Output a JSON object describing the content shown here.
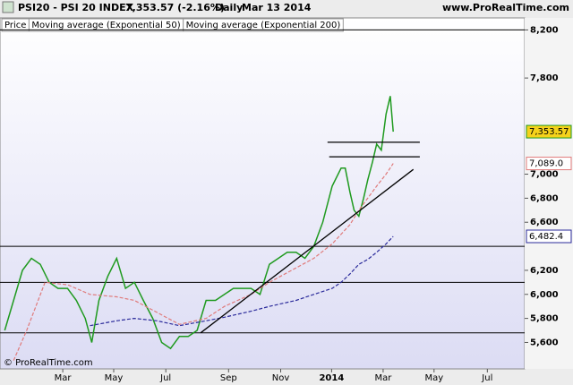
{
  "chart_data": {
    "type": "line",
    "title": "PSI20 - PSI 20 INDEX",
    "subtitle": "7,353.57 (-2.16%)",
    "period": "Daily",
    "date": "Mar 13 2014",
    "brand": "www.ProRealTime.com",
    "copyright": "© ProRealTime.com",
    "xlim": [
      0,
      88.6
    ],
    "ylim": [
      5380,
      8300
    ],
    "xticks": [
      {
        "value": 10.6,
        "label": "Mar"
      },
      {
        "value": 19.2,
        "label": "May"
      },
      {
        "value": 28,
        "label": "Jul"
      },
      {
        "value": 38.6,
        "label": "Sep"
      },
      {
        "value": 47.4,
        "label": "Nov"
      },
      {
        "value": 56,
        "label": "2014"
      },
      {
        "value": 64.7,
        "label": "Mar"
      },
      {
        "value": 73.3,
        "label": "May"
      },
      {
        "value": 82.3,
        "label": "Jul"
      }
    ],
    "yticks": [
      {
        "value": 8200,
        "label": "8,200"
      },
      {
        "value": 7800,
        "label": "7,800"
      },
      {
        "value": 7000,
        "label": "7,000"
      },
      {
        "value": 6800,
        "label": "6,800"
      },
      {
        "value": 6600,
        "label": "6,600"
      },
      {
        "value": 6200,
        "label": "6,200"
      },
      {
        "value": 6000,
        "label": "6,000"
      },
      {
        "value": 5800,
        "label": "5,800"
      },
      {
        "value": 5600,
        "label": "5,600"
      }
    ],
    "series": [
      {
        "name": "Price",
        "color": "#1f9a1f",
        "dash": false,
        "label_bg": "#f5d21b",
        "x": [
          0.8,
          2.3,
          3.8,
          5.3,
          6.8,
          8.3,
          9.8,
          11.4,
          12.9,
          14.4,
          15.5,
          16.7,
          18.2,
          19.7,
          21.2,
          22.7,
          24.2,
          25.8,
          27.3,
          28.8,
          30.3,
          31.8,
          33.3,
          34.8,
          36.4,
          37.9,
          39.4,
          40.9,
          42.4,
          43.9,
          45.5,
          47,
          48.5,
          50,
          51.5,
          53,
          54.5,
          56.1,
          57.6,
          58.3,
          59.1,
          59.8,
          60.6,
          61.4,
          62.1,
          62.9,
          63.6,
          64.4,
          65.2,
          65.9,
          66.4
        ],
        "values": [
          5700,
          5950,
          6200,
          6300,
          6250,
          6100,
          6050,
          6050,
          5950,
          5800,
          5600,
          5950,
          6150,
          6300,
          6050,
          6100,
          5950,
          5800,
          5600,
          5550,
          5650,
          5650,
          5700,
          5950,
          5950,
          6000,
          6050,
          6050,
          6050,
          6000,
          6250,
          6300,
          6350,
          6350,
          6300,
          6400,
          6600,
          6900,
          7050,
          7050,
          6850,
          6700,
          6650,
          6800,
          6950,
          7100,
          7250,
          7200,
          7500,
          7650,
          7353.57
        ],
        "last_label": "7,353.57"
      },
      {
        "name": "Moving average (Exponential 50)",
        "color": "#e07a7a",
        "dash": true,
        "label_bg": "#ffffff",
        "x": [
          2.3,
          4.5,
          7.6,
          11.4,
          15.2,
          19.7,
          22.7,
          26.5,
          30.3,
          34.8,
          37.9,
          42.4,
          45.5,
          50,
          53,
          56.1,
          57.6,
          59.1,
          60.6,
          62.1,
          63.6,
          65.2,
          66.4
        ],
        "values": [
          5450,
          5700,
          6100,
          6080,
          6000,
          5980,
          5950,
          5850,
          5750,
          5800,
          5900,
          6000,
          6100,
          6220,
          6300,
          6420,
          6500,
          6580,
          6700,
          6800,
          6900,
          7000,
          7089.0
        ],
        "last_label": "7,089.0"
      },
      {
        "name": "Moving average (Exponential 200)",
        "color": "#2a2a9a",
        "dash": true,
        "label_bg": "#ffffff",
        "x": [
          15.2,
          19.7,
          22.7,
          26.5,
          30.3,
          34.8,
          37.9,
          42.4,
          45.5,
          50,
          53,
          56.1,
          57.6,
          59.1,
          60.6,
          62.1,
          63.6,
          65.2,
          66.4
        ],
        "values": [
          5740,
          5780,
          5800,
          5780,
          5740,
          5780,
          5810,
          5860,
          5900,
          5950,
          6000,
          6050,
          6100,
          6170,
          6250,
          6290,
          6350,
          6420,
          6482.4
        ],
        "last_label": "6,482.4"
      }
    ],
    "hlines": [
      8200,
      6400,
      6100,
      5680
    ],
    "segments": [
      {
        "x": [
          33.9,
          69.8
        ],
        "values": [
          5680,
          7040
        ]
      },
      {
        "x": [
          55.3,
          70.9
        ],
        "values": [
          7265,
          7265
        ]
      },
      {
        "x": [
          55.6,
          70.9
        ],
        "values": [
          7145,
          7145
        ]
      }
    ]
  }
}
